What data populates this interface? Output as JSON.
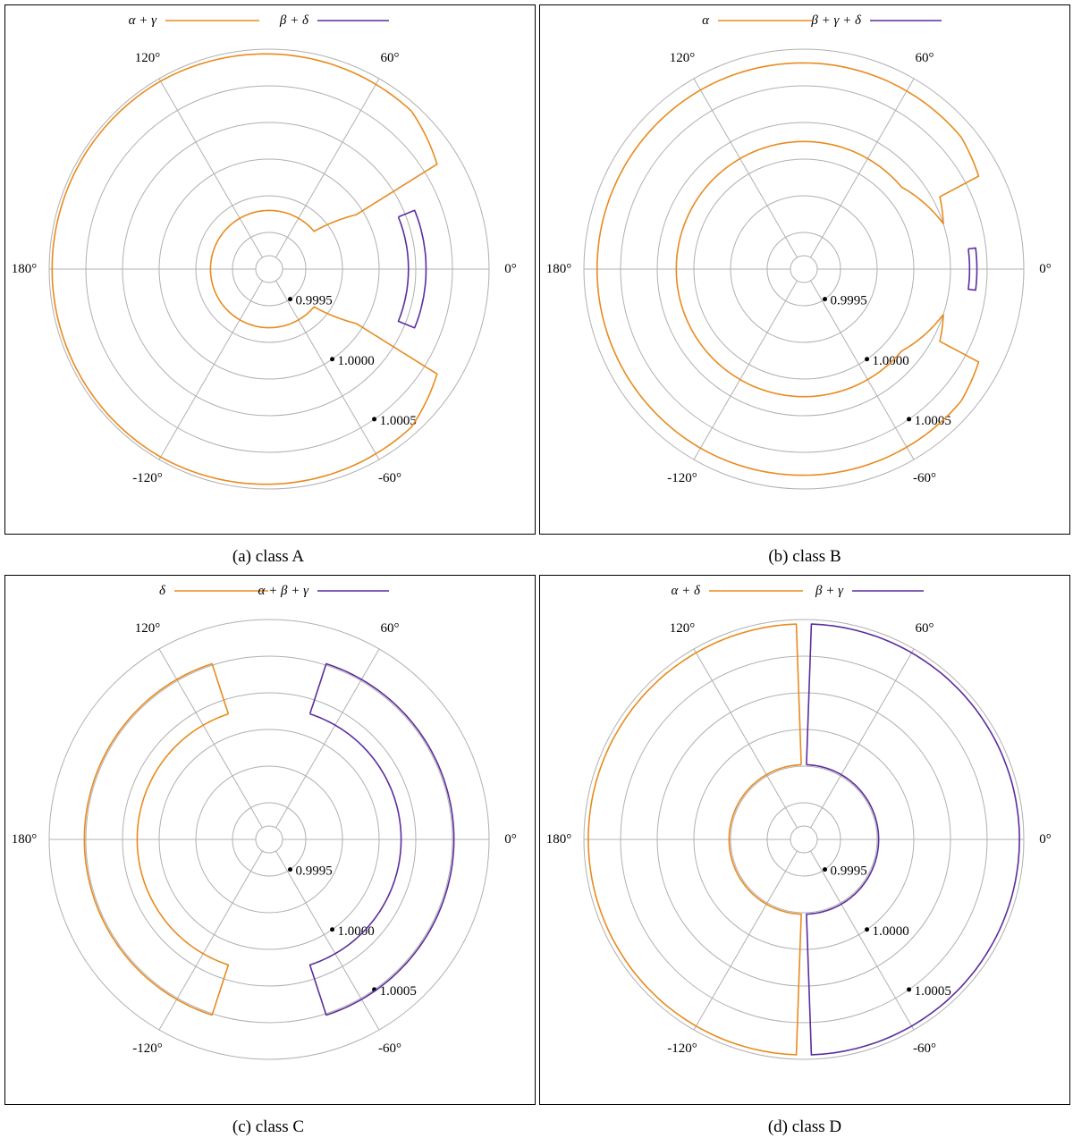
{
  "colors": {
    "orange": "#e88b1f",
    "purple": "#5b2d9e",
    "grid": "#b0b0b0",
    "frame": "#000000"
  },
  "chart_data": [
    {
      "type": "polar-line",
      "caption": "(a) class A",
      "radial_ticks": [
        "0.9995",
        "1.0000",
        "1.0005"
      ],
      "angle_labels": [
        "0°",
        "60°",
        "120°",
        "180°",
        "-120°",
        "-60°"
      ],
      "legend": [
        {
          "name": "α + γ",
          "color": "orange"
        },
        {
          "name": "β + δ",
          "color": "purple"
        }
      ],
      "rlim": [
        0.99925,
        1.00075
      ],
      "curves": [
        {
          "series": "α + γ",
          "color": "orange",
          "points": [
            [
              0.99995,
              -32
            ],
            [
              1.0006,
              -32
            ],
            [
              1.0007,
              -48
            ],
            [
              1.00073,
              -120
            ],
            [
              1.00073,
              180
            ],
            [
              1.00073,
              120
            ],
            [
              1.0007,
              48
            ],
            [
              1.0006,
              32
            ],
            [
              0.99995,
              32
            ],
            [
              0.99965,
              40
            ],
            [
              0.99965,
              180
            ],
            [
              0.99965,
              -40
            ],
            [
              0.99995,
              -32
            ]
          ]
        },
        {
          "series": "β + δ",
          "color": "purple",
          "points": [
            [
              1.0002,
              22
            ],
            [
              1.00032,
              22
            ],
            [
              1.00032,
              -22
            ],
            [
              1.0002,
              -22
            ],
            [
              1.0002,
              22
            ]
          ]
        }
      ]
    },
    {
      "type": "polar-line",
      "caption": "(b) class B",
      "radial_ticks": [
        "0.9995",
        "1.0000",
        "1.0005"
      ],
      "angle_labels": [
        "0°",
        "60°",
        "120°",
        "180°",
        "-120°",
        "-60°"
      ],
      "legend": [
        {
          "name": "α",
          "color": "orange"
        },
        {
          "name": "β + γ + δ",
          "color": "purple"
        }
      ],
      "rlim": [
        0.99925,
        1.00075
      ],
      "curves": [
        {
          "series": "α",
          "color": "orange",
          "points": [
            [
              1.00025,
              -18
            ],
            [
              1.0003,
              -28
            ],
            [
              1.0006,
              -28
            ],
            [
              1.00065,
              -40
            ],
            [
              1.00066,
              -120
            ],
            [
              1.00066,
              180
            ],
            [
              1.00066,
              120
            ],
            [
              1.00065,
              40
            ],
            [
              1.0006,
              28
            ],
            [
              1.0003,
              28
            ],
            [
              1.00025,
              18
            ],
            [
              1.00012,
              40
            ],
            [
              1.00012,
              180
            ],
            [
              1.00012,
              -40
            ],
            [
              1.00025,
              -18
            ]
          ]
        },
        {
          "series": "β + γ + δ",
          "color": "purple",
          "points": [
            [
              1.00038,
              7
            ],
            [
              1.00043,
              7
            ],
            [
              1.00043,
              -7
            ],
            [
              1.00038,
              -7
            ],
            [
              1.00038,
              7
            ]
          ]
        }
      ]
    },
    {
      "type": "polar-line",
      "caption": "(c) class C",
      "radial_ticks": [
        "0.9995",
        "1.0000",
        "1.0005"
      ],
      "angle_labels": [
        "0°",
        "60°",
        "120°",
        "180°",
        "-120°",
        "-60°"
      ],
      "legend": [
        {
          "name": "δ",
          "color": "orange"
        },
        {
          "name": "α + β + γ",
          "color": "purple"
        }
      ],
      "rlim": [
        0.99925,
        1.00075
      ],
      "curves": [
        {
          "series": "δ",
          "color": "orange",
          "points": [
            [
              1.00015,
              108
            ],
            [
              1.00051,
              108
            ],
            [
              1.00051,
              -108
            ],
            [
              1.00015,
              -108
            ],
            [
              1.00015,
              108
            ]
          ]
        },
        {
          "series": "α + β + γ",
          "color": "purple",
          "points": [
            [
              1.00015,
              72
            ],
            [
              1.00051,
              72
            ],
            [
              1.00051,
              -72
            ],
            [
              1.00015,
              -72
            ],
            [
              1.00015,
              72
            ]
          ]
        }
      ]
    },
    {
      "type": "polar-line",
      "caption": "(d) class D",
      "radial_ticks": [
        "0.9995",
        "1.0000",
        "1.0005"
      ],
      "angle_labels": [
        "0°",
        "60°",
        "120°",
        "180°",
        "-120°",
        "-60°"
      ],
      "legend": [
        {
          "name": "α + δ",
          "color": "orange"
        },
        {
          "name": "β + γ",
          "color": "purple"
        }
      ],
      "rlim": [
        0.99925,
        1.00075
      ],
      "curves": [
        {
          "series": "α + δ",
          "color": "orange",
          "points": [
            [
              0.99976,
              92
            ],
            [
              1.00072,
              92
            ],
            [
              1.00072,
              -92
            ],
            [
              0.99976,
              -92
            ],
            [
              0.99976,
              92
            ]
          ]
        },
        {
          "series": "β + γ",
          "color": "purple",
          "points": [
            [
              0.99976,
              88
            ],
            [
              1.00072,
              88
            ],
            [
              1.00072,
              -88
            ],
            [
              0.99976,
              -88
            ],
            [
              0.99976,
              88
            ]
          ]
        }
      ]
    }
  ]
}
